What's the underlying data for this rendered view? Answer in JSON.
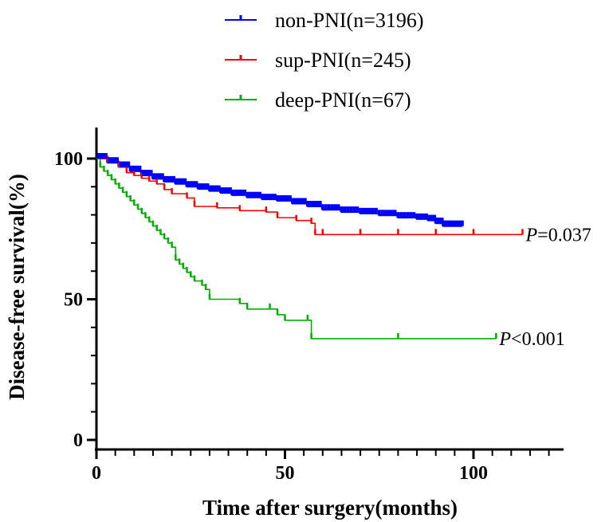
{
  "chart_data": {
    "type": "line",
    "title": "",
    "xlabel": "Time after surgery(months)",
    "ylabel": "Disease-free survival(%)",
    "xlim": [
      0,
      120
    ],
    "ylim": [
      0,
      100
    ],
    "x_ticks": [
      0,
      50,
      100
    ],
    "y_ticks": [
      0,
      50,
      100
    ],
    "grid": false,
    "legend_position": "top",
    "series": [
      {
        "name": "non-PNI(n=3196)",
        "color": "#0000ff",
        "x": [
          0,
          3,
          6,
          9,
          12,
          15,
          18,
          21,
          24,
          27,
          30,
          33,
          36,
          40,
          44,
          48,
          52,
          56,
          60,
          65,
          70,
          75,
          80,
          85,
          88,
          90,
          92,
          94,
          97
        ],
        "y": [
          100,
          98.5,
          97,
          95.5,
          94,
          92.8,
          91.8,
          91,
          90,
          89.2,
          88.5,
          87.8,
          87,
          86.2,
          85.5,
          85,
          84,
          83,
          81.8,
          81,
          80.5,
          79.8,
          79,
          78.5,
          78,
          77,
          76,
          76,
          76
        ]
      },
      {
        "name": "sup-PNI(n=245)",
        "color": "#ff0000",
        "x": [
          0,
          3,
          6,
          8,
          10,
          12,
          14,
          16,
          18,
          20,
          24,
          26,
          32,
          38,
          45,
          48,
          53,
          57,
          58,
          60,
          70,
          80,
          90,
          100,
          113
        ],
        "y": [
          100,
          99,
          97,
          95,
          94,
          93,
          92,
          91,
          89,
          87.5,
          86,
          83,
          82.5,
          81.5,
          81,
          79,
          78,
          77,
          73,
          73,
          73,
          73,
          73,
          73,
          73
        ]
      },
      {
        "name": "deep-PNI(n=67)",
        "color": "#00b000",
        "x": [
          0,
          1,
          2,
          3,
          4,
          5,
          6,
          7,
          8,
          9,
          10,
          11,
          12,
          13,
          14,
          15,
          16,
          17,
          18,
          19,
          20,
          21,
          22,
          23,
          24,
          25,
          26,
          28,
          29,
          30,
          38,
          40,
          46,
          48,
          50,
          56,
          57,
          80,
          106
        ],
        "y": [
          100,
          97,
          95.5,
          94,
          92.5,
          91,
          89.5,
          88,
          86.5,
          85,
          83.5,
          82,
          80.5,
          79,
          77.5,
          76,
          74.5,
          73,
          71.5,
          70,
          68.5,
          64,
          62.5,
          61,
          59.5,
          58,
          56.5,
          55,
          53.5,
          50,
          48.5,
          46.5,
          46.5,
          44.5,
          42.5,
          42.5,
          36,
          36,
          36
        ]
      }
    ],
    "annotations": [
      {
        "text": "P=0.037",
        "x": 113,
        "y": 73
      },
      {
        "text": "P<0.001",
        "x": 106,
        "y": 36
      }
    ]
  }
}
